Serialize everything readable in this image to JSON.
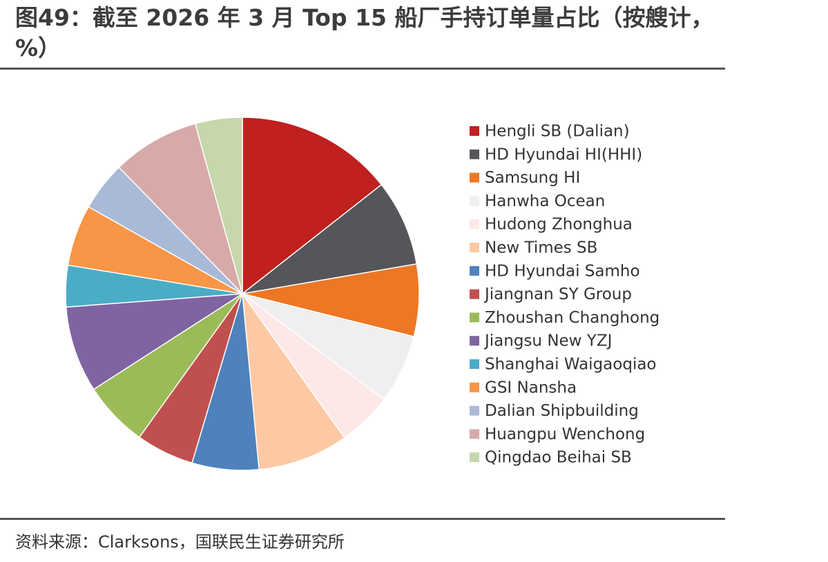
{
  "chart_data": {
    "type": "pie",
    "title": "图49：截至 2026 年 3 月 Top 15 船厂手持订单量占比（按艘计，%）",
    "source": "资料来源：Clarksons，国联民生证券研究所",
    "categories": [
      "Hengli SB (Dalian)",
      "HD Hyundai HI(HHI)",
      "Samsung HI",
      "Hanwha Ocean",
      "Hudong Zhonghua",
      "New Times SB",
      "HD Hyundai Samho",
      "Jiangnan SY Group",
      "Zhoushan Changhong",
      "Jiangsu New YZJ",
      "Shanghai Waigaoqiao",
      "GSI Nansha",
      "Dalian Shipbuilding",
      "Huangpu Wenchong",
      "Qingdao Beihai SB"
    ],
    "values": [
      14.4,
      7.9,
      6.6,
      6.3,
      5.0,
      8.3,
      6.1,
      5.3,
      6.0,
      7.9,
      3.8,
      5.6,
      4.5,
      8.0,
      4.3
    ],
    "colors": [
      "#C0201E",
      "#54565A",
      "#EE7725",
      "#EFEFEF",
      "#FDE8E8",
      "#FDC9A4",
      "#4F81BD",
      "#C0504D",
      "#9BBB59",
      "#8064A2",
      "#4BACC6",
      "#F79646",
      "#A9B9D8",
      "#D8A9A9",
      "#C6D7AB"
    ],
    "legend": "right"
  }
}
